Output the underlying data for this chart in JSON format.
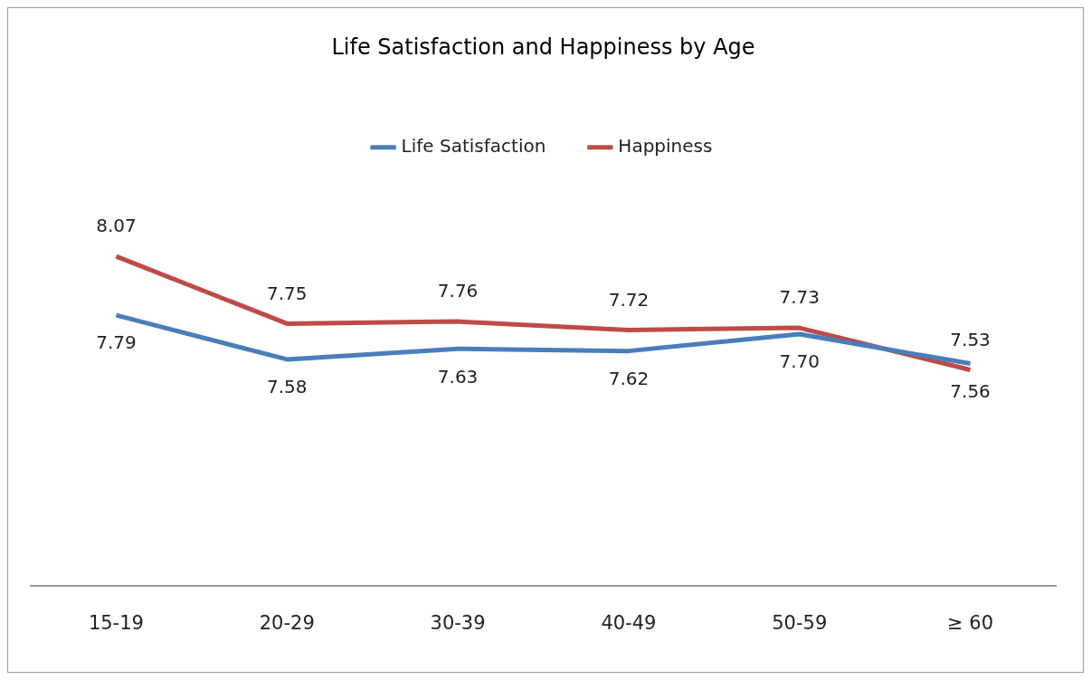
{
  "chart_data": {
    "type": "line",
    "title": "Life Satisfaction and Happiness by Age",
    "categories": [
      "15-19",
      "20-29",
      "30-39",
      "40-49",
      "50-59",
      "≥ 60"
    ],
    "series": [
      {
        "name": "Life Satisfaction",
        "color": "#4a7ebb",
        "values": [
          7.79,
          7.58,
          7.63,
          7.62,
          7.7,
          7.56
        ],
        "value_labels": [
          "7.79",
          "7.58",
          "7.63",
          "7.62",
          "7.70",
          "7.56"
        ]
      },
      {
        "name": "Happiness",
        "color": "#be4b48",
        "values": [
          8.07,
          7.75,
          7.76,
          7.72,
          7.73,
          7.53
        ],
        "value_labels": [
          "8.07",
          "7.75",
          "7.76",
          "7.72",
          "7.73",
          "7.53"
        ]
      }
    ],
    "legend": "top",
    "grid": false,
    "marker": "none",
    "line_style": "solid"
  }
}
